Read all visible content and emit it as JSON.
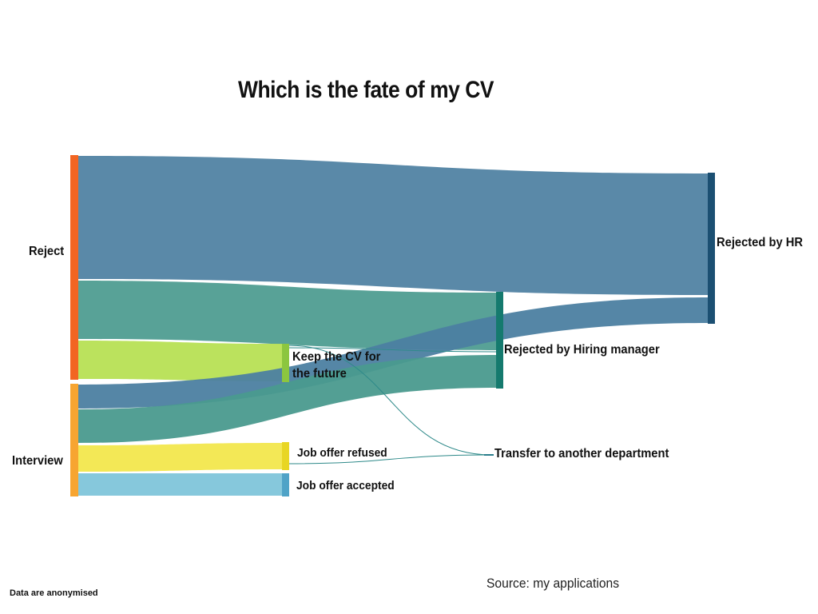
{
  "title": "Which is the fate of my CV",
  "source": "Source: my applications",
  "footnote": "Data are anonymised",
  "nodes": {
    "reject": {
      "label": "Reject",
      "color": "#f26522"
    },
    "interview": {
      "label": "Interview",
      "color": "#f7a531"
    },
    "keep": {
      "label": "Keep the CV for the future",
      "color": "#8cc63f"
    },
    "refused": {
      "label": "Job offer refused",
      "color": "#e8d624"
    },
    "accepted": {
      "label": "Job offer accepted",
      "color": "#4fa3c7"
    },
    "hiring": {
      "label": "Rejected by Hiring manager",
      "color": "#157a6e"
    },
    "transfer": {
      "label": "Transfer to another department",
      "color": "#2a7d8c"
    },
    "hr": {
      "label": "Rejected by HR",
      "color": "#1b4f72"
    }
  },
  "flow_colors": {
    "to_hr": "#4c7fa1",
    "to_hiring": "#4a9a8e",
    "to_keep": "#b5e04f",
    "to_refused": "#f2e648",
    "to_accepted": "#7cc3d9",
    "to_transfer": "#2f8a8a"
  }
}
